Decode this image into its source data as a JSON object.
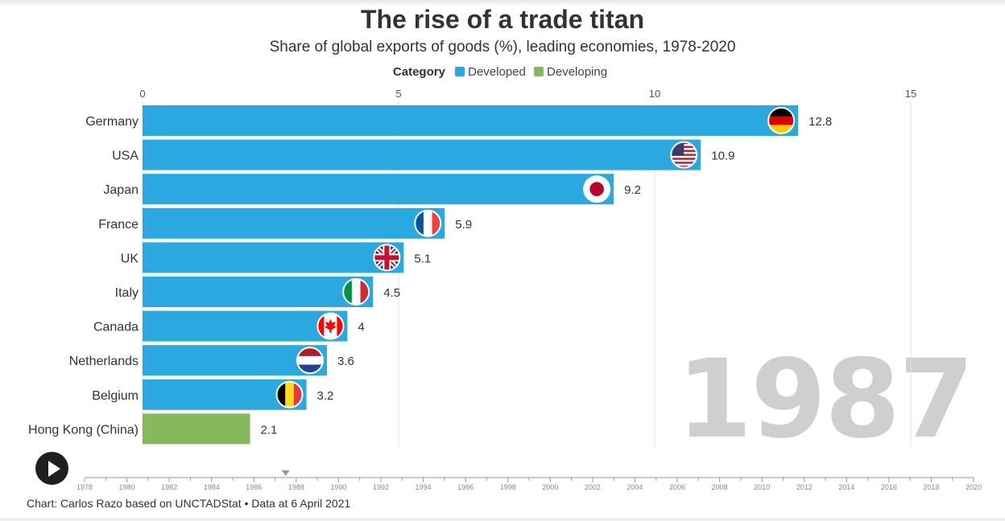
{
  "title": "The rise of a trade titan",
  "subtitle": "Share of global exports of goods (%), leading economies, 1978-2020",
  "legend": {
    "title": "Category",
    "items": [
      {
        "label": "Developed",
        "color": "#29a9df"
      },
      {
        "label": "Developing",
        "color": "#85b95c"
      }
    ]
  },
  "current_year": "1987",
  "timeline": {
    "ticks": [
      "1978",
      "1980",
      "1982",
      "1984",
      "1986",
      "1988",
      "1990",
      "1992",
      "1994",
      "1996",
      "1998",
      "2000",
      "2002",
      "2004",
      "2006",
      "2008",
      "2010",
      "2012",
      "2014",
      "2016",
      "2018",
      "2020"
    ],
    "current": 1987.5
  },
  "source": "Chart: Carlos Razo based on UNCTADStat • Data at 6 April 2021",
  "chart_data": {
    "type": "bar",
    "orientation": "horizontal",
    "xlim": [
      0,
      15
    ],
    "x_ticks": [
      "0",
      "5",
      "10",
      "15"
    ],
    "grid": true,
    "categories": [
      "Germany",
      "USA",
      "Japan",
      "France",
      "UK",
      "Italy",
      "Canada",
      "Netherlands",
      "Belgium",
      "Hong Kong (China)"
    ],
    "values": [
      12.8,
      10.9,
      9.2,
      5.9,
      5.1,
      4.5,
      4,
      3.6,
      3.2,
      2.1
    ],
    "value_labels": [
      "12.8",
      "10.9",
      "9.2",
      "5.9",
      "5.1",
      "4.5",
      "4",
      "3.6",
      "3.2",
      "2.1"
    ],
    "groups": [
      "Developed",
      "Developed",
      "Developed",
      "Developed",
      "Developed",
      "Developed",
      "Developed",
      "Developed",
      "Developed",
      "Developing"
    ],
    "flags": [
      "germany-flag",
      "usa-flag",
      "japan-flag",
      "france-flag",
      "uk-flag",
      "italy-flag",
      "canada-flag",
      "netherlands-flag",
      "belgium-flag",
      ""
    ]
  }
}
